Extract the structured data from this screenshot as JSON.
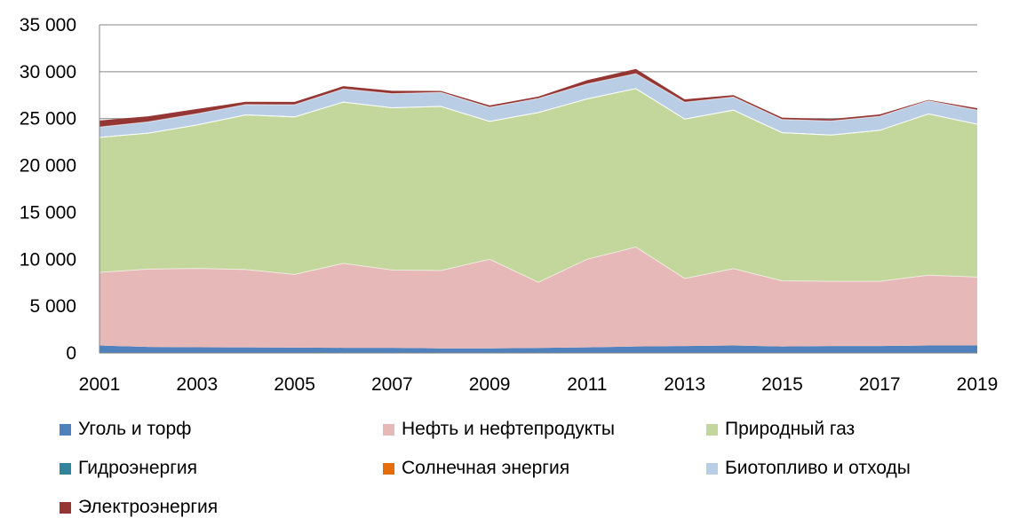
{
  "chart_data": {
    "type": "area",
    "stacked": true,
    "x": [
      2001,
      2002,
      2003,
      2004,
      2005,
      2006,
      2007,
      2008,
      2009,
      2010,
      2011,
      2012,
      2013,
      2014,
      2015,
      2016,
      2017,
      2018,
      2019
    ],
    "x_tick_labels": [
      "2001",
      "2003",
      "2005",
      "2007",
      "2009",
      "2011",
      "2013",
      "2015",
      "2017",
      "2019"
    ],
    "y_tick_labels": [
      "0",
      "5 000",
      "10 000",
      "15 000",
      "20 000",
      "25 000",
      "30 000",
      "35 000"
    ],
    "ylim": [
      0,
      35000
    ],
    "grid": true,
    "legend_position": "bottom",
    "title": "",
    "xlabel": "",
    "ylabel": "",
    "series": [
      {
        "name": "Уголь и торф",
        "color": "#4F81BD",
        "values": [
          800,
          650,
          620,
          600,
          580,
          560,
          560,
          500,
          500,
          550,
          600,
          700,
          750,
          800,
          700,
          750,
          750,
          800,
          800
        ]
      },
      {
        "name": "Нефть и нефтепродукты",
        "color": "#E6B9B8",
        "values": [
          7800,
          8300,
          8400,
          8300,
          7800,
          9000,
          8300,
          8300,
          9500,
          7000,
          9400,
          10600,
          7200,
          8200,
          7000,
          6900,
          6900,
          7500,
          7300
        ]
      },
      {
        "name": "Природный газ",
        "color": "#C3D69B",
        "values": [
          14400,
          14500,
          15300,
          16500,
          16800,
          17200,
          17300,
          17500,
          14700,
          18100,
          17100,
          16900,
          17000,
          16900,
          15800,
          15600,
          16100,
          17200,
          16300
        ]
      },
      {
        "name": "Гидроэнергия",
        "color": "#31849B",
        "values": [
          0,
          0,
          0,
          0,
          0,
          0,
          0,
          0,
          0,
          0,
          0,
          0,
          0,
          0,
          0,
          0,
          0,
          0,
          0
        ]
      },
      {
        "name": "Солнечная энергия",
        "color": "#E46C0A",
        "values": [
          0,
          0,
          0,
          0,
          0,
          0,
          0,
          0,
          0,
          0,
          0,
          0,
          0,
          0,
          0,
          0,
          0,
          0,
          5
        ]
      },
      {
        "name": "Биотопливо и отходы",
        "color": "#B9CDE5",
        "values": [
          1100,
          1200,
          1200,
          1100,
          1300,
          1400,
          1500,
          1500,
          1500,
          1500,
          1600,
          1600,
          1800,
          1400,
          1400,
          1500,
          1500,
          1400,
          1500
        ]
      },
      {
        "name": "Электроэнергия",
        "color": "#943634",
        "values": [
          700,
          600,
          500,
          300,
          300,
          300,
          300,
          150,
          200,
          200,
          400,
          500,
          300,
          200,
          200,
          200,
          200,
          100,
          200
        ]
      }
    ]
  }
}
